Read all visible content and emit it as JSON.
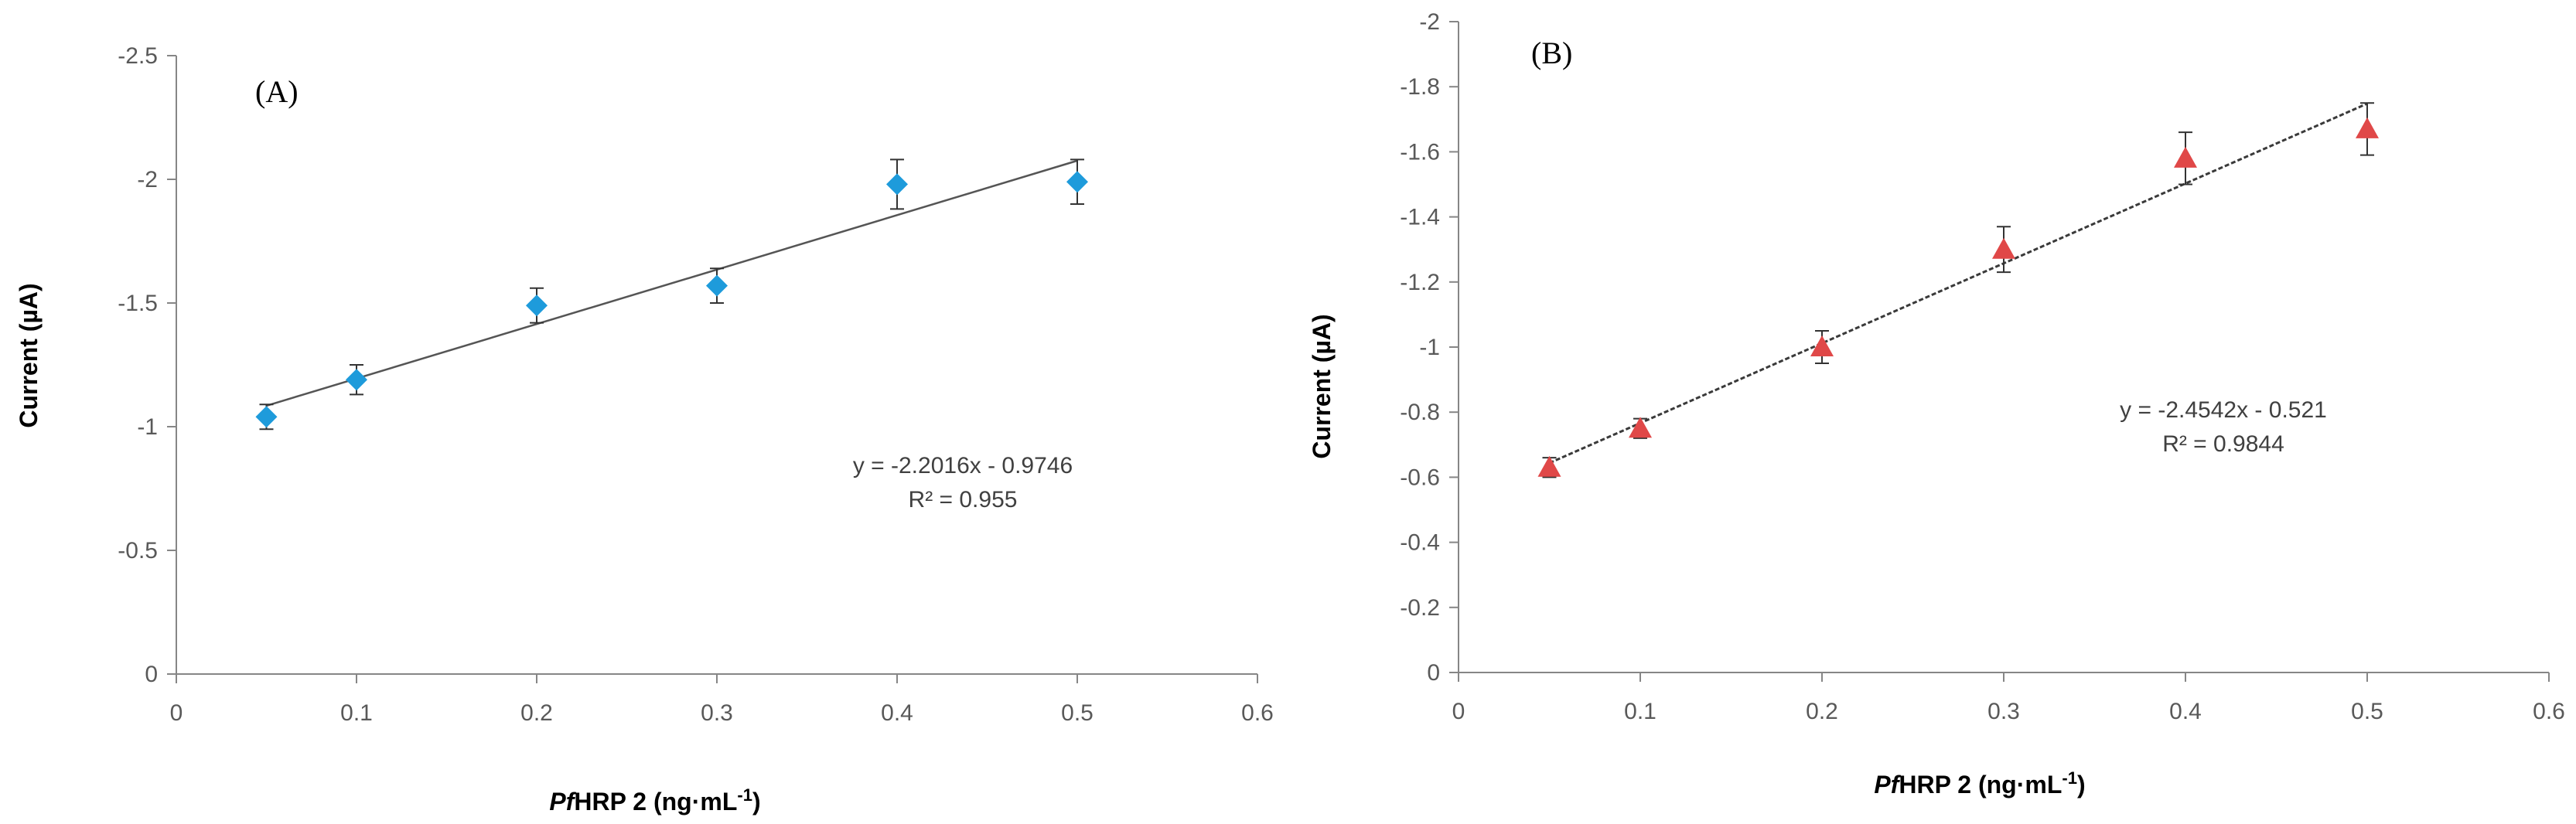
{
  "chart_data": [
    {
      "type": "scatter",
      "panel_label": "(A)",
      "xlabel_italic": "Pf",
      "xlabel_rest": "HRP 2 (ng·mL",
      "xlabel_sup": "-1",
      "xlabel_close": ")",
      "ylabel": "Current (µA)",
      "xlim": [
        0,
        0.6
      ],
      "ylim": [
        0,
        -2.5
      ],
      "x_ticks": [
        0,
        0.1,
        0.2,
        0.3,
        0.4,
        0.5,
        0.6
      ],
      "x_tick_labels": [
        "0",
        "0.1",
        "0.2",
        "0.3",
        "0.4",
        "0.5",
        "0.6"
      ],
      "y_ticks": [
        0,
        -0.5,
        -1,
        -1.5,
        -2,
        -2.5
      ],
      "y_tick_labels": [
        "0",
        "-0.5",
        "-1",
        "-1.5",
        "-2",
        "-2.5"
      ],
      "marker": "diamond",
      "marker_color": "#1E9BDB",
      "series": [
        {
          "name": "data",
          "x": [
            0.05,
            0.1,
            0.2,
            0.3,
            0.4,
            0.5
          ],
          "y": [
            -1.04,
            -1.19,
            -1.49,
            -1.57,
            -1.98,
            -1.99
          ],
          "error": [
            0.05,
            0.06,
            0.07,
            0.07,
            0.1,
            0.09
          ]
        }
      ],
      "trendline": {
        "slope": -2.2016,
        "intercept": -0.9746,
        "x_range": [
          0.05,
          0.5
        ]
      },
      "equation_text": "y = -2.2016x - 0.9746",
      "r2_text": "R² = 0.955"
    },
    {
      "type": "scatter",
      "panel_label": "(B)",
      "xlabel_italic": "Pf",
      "xlabel_rest": "HRP 2 (ng·mL",
      "xlabel_sup": "-1",
      "xlabel_close": ")",
      "ylabel": "Current (µA)",
      "xlim": [
        0,
        0.6
      ],
      "ylim": [
        0,
        -2
      ],
      "x_ticks": [
        0,
        0.1,
        0.2,
        0.3,
        0.4,
        0.5,
        0.6
      ],
      "x_tick_labels": [
        "0",
        "0.1",
        "0.2",
        "0.3",
        "0.4",
        "0.5",
        "0.6"
      ],
      "y_ticks": [
        0,
        -0.2,
        -0.4,
        -0.6,
        -0.8,
        -1,
        -1.2,
        -1.4,
        -1.6,
        -1.8,
        -2
      ],
      "y_tick_labels": [
        "0",
        "-0.2",
        "-0.4",
        "-0.6",
        "-0.8",
        "-1",
        "-1.2",
        "-1.4",
        "-1.6",
        "-1.8",
        "-2"
      ],
      "marker": "triangle",
      "marker_color": "#E04848",
      "series": [
        {
          "name": "data",
          "x": [
            0.05,
            0.1,
            0.2,
            0.3,
            0.4,
            0.5
          ],
          "y": [
            -0.63,
            -0.75,
            -1.0,
            -1.3,
            -1.58,
            -1.67
          ],
          "error": [
            0.03,
            0.03,
            0.05,
            0.07,
            0.08,
            0.08
          ]
        }
      ],
      "trendline": {
        "slope": -2.4542,
        "intercept": -0.521,
        "x_range": [
          0.05,
          0.5
        ]
      },
      "equation_text": "y = -2.4542x - 0.521",
      "r2_text": "R² = 0.9844"
    }
  ]
}
